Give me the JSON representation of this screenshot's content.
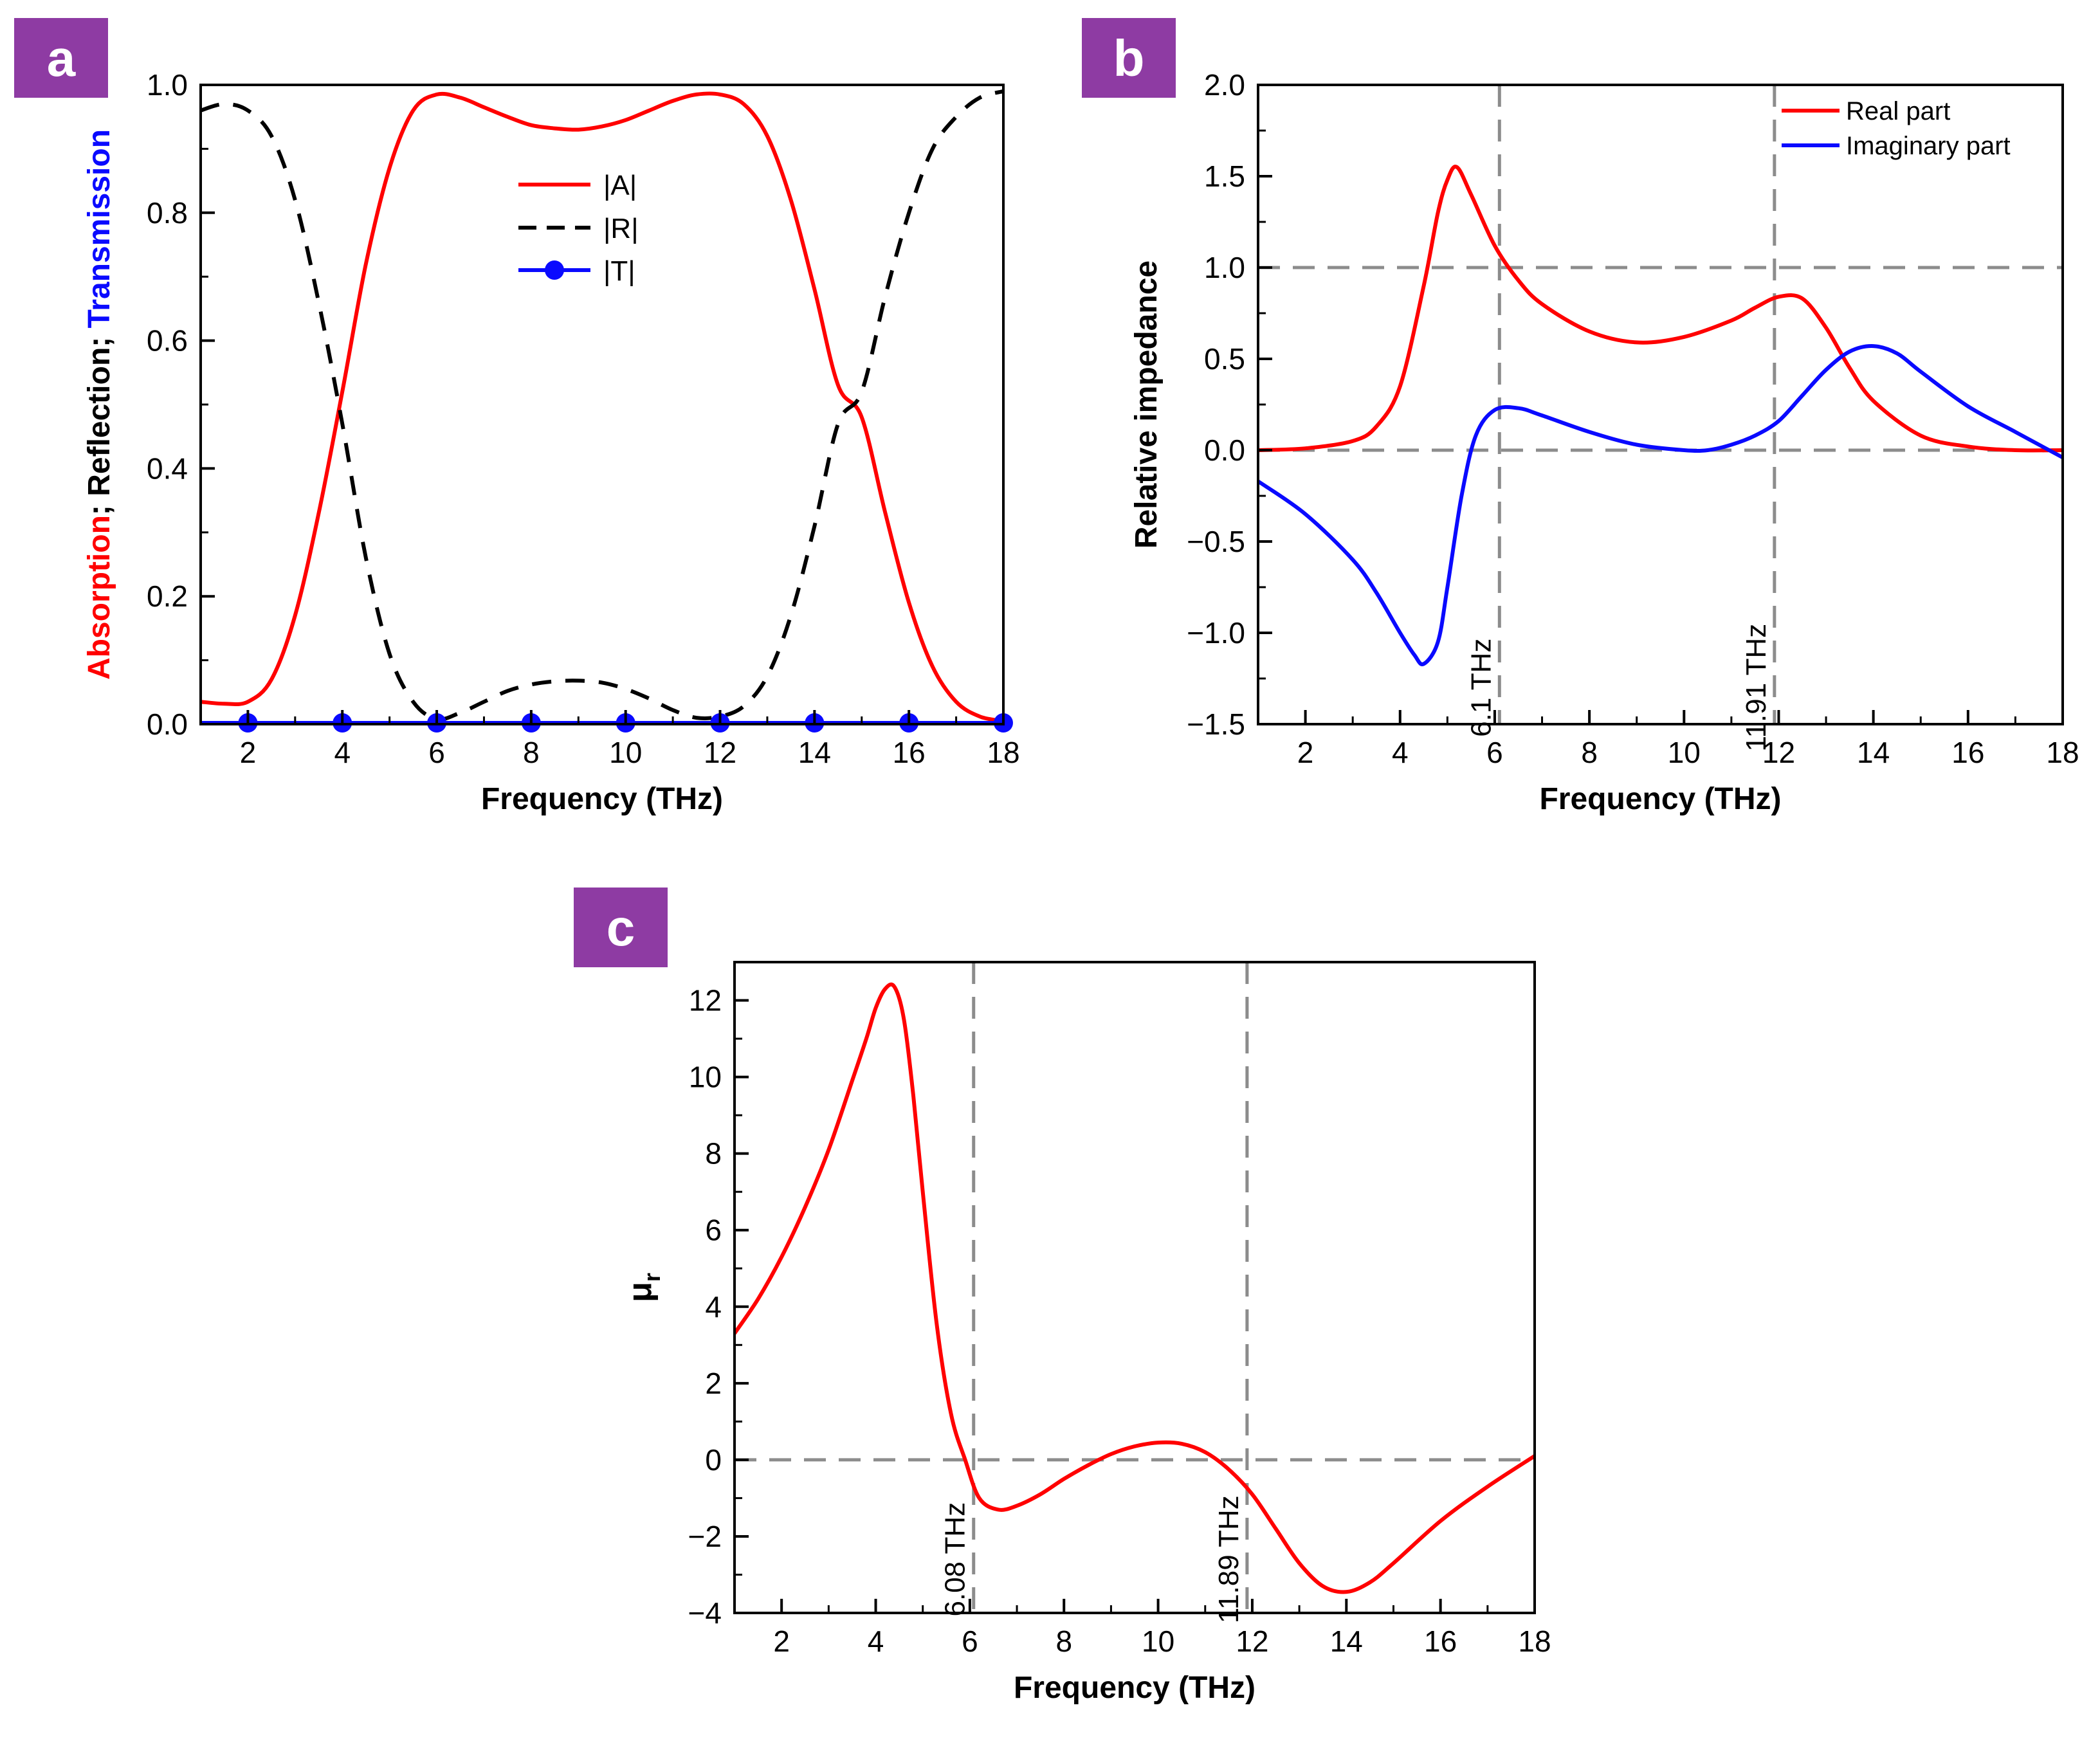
{
  "panel_labels": {
    "a": "a",
    "b": "b",
    "c": "c"
  },
  "colors": {
    "badge": "#8e3ba3",
    "red": "#ff0000",
    "blue": "#0a0aff",
    "black": "#000000",
    "guide": "#8c8c8c"
  },
  "chart_data": [
    {
      "id": "a",
      "type": "line",
      "xlabel": "Frequency (THz)",
      "ylabel_parts": [
        {
          "text": "Absorption",
          "color": "#ff0000"
        },
        {
          "text": "; Reflection; ",
          "color": "#000000"
        },
        {
          "text": "Transmission",
          "color": "#0a0aff"
        }
      ],
      "xlim": [
        1,
        18
      ],
      "ylim": [
        0,
        1.0
      ],
      "x_ticks": [
        "2",
        "4",
        "6",
        "8",
        "10",
        "12",
        "14",
        "16",
        "18"
      ],
      "y_ticks": [
        "0.0",
        "0.2",
        "0.4",
        "0.6",
        "0.8",
        "1.0"
      ],
      "legend_position": "top-center",
      "series": [
        {
          "name": "|A|",
          "color": "#ff0000",
          "style": "solid",
          "markers": false,
          "x": [
            1,
            1.5,
            2,
            2.5,
            3,
            3.5,
            4,
            4.5,
            5,
            5.5,
            6,
            6.5,
            7,
            7.5,
            8,
            8.5,
            9,
            9.5,
            10,
            10.5,
            11,
            11.5,
            12,
            12.5,
            13,
            13.5,
            14,
            14.5,
            15,
            15.5,
            16,
            16.5,
            17,
            17.5,
            18
          ],
          "y": [
            0.035,
            0.032,
            0.035,
            0.07,
            0.17,
            0.33,
            0.52,
            0.72,
            0.87,
            0.96,
            0.985,
            0.98,
            0.965,
            0.95,
            0.937,
            0.932,
            0.93,
            0.935,
            0.945,
            0.96,
            0.975,
            0.985,
            0.985,
            0.97,
            0.92,
            0.82,
            0.68,
            0.53,
            0.48,
            0.33,
            0.19,
            0.09,
            0.035,
            0.012,
            0.005
          ]
        },
        {
          "name": "|R|",
          "color": "#000000",
          "style": "dashed",
          "markers": false,
          "x": [
            1,
            1.5,
            2,
            2.5,
            3,
            3.5,
            4,
            4.5,
            5,
            5.5,
            6,
            6.5,
            7,
            7.5,
            8,
            8.5,
            9,
            9.5,
            10,
            10.5,
            11,
            11.5,
            12,
            12.5,
            13,
            13.5,
            14,
            14.5,
            15,
            15.5,
            16,
            16.5,
            17,
            17.5,
            18
          ],
          "y": [
            0.96,
            0.97,
            0.96,
            0.92,
            0.82,
            0.66,
            0.47,
            0.26,
            0.11,
            0.035,
            0.008,
            0.018,
            0.035,
            0.052,
            0.062,
            0.067,
            0.068,
            0.065,
            0.055,
            0.04,
            0.022,
            0.01,
            0.012,
            0.028,
            0.075,
            0.17,
            0.31,
            0.47,
            0.52,
            0.67,
            0.8,
            0.9,
            0.95,
            0.98,
            0.99
          ]
        },
        {
          "name": "|T|",
          "color": "#0a0aff",
          "style": "solid",
          "markers": true,
          "x": [
            1,
            18
          ],
          "y": [
            0.002,
            0.002
          ],
          "marker_x": [
            2,
            4,
            6,
            8,
            10,
            12,
            14,
            16,
            18
          ],
          "marker_y": [
            0.002,
            0.002,
            0.002,
            0.002,
            0.002,
            0.002,
            0.002,
            0.002,
            0.002
          ]
        }
      ]
    },
    {
      "id": "b",
      "type": "line",
      "xlabel": "Frequency (THz)",
      "ylabel": "Relative impedance",
      "xlim": [
        1,
        18
      ],
      "ylim": [
        -1.5,
        2.0
      ],
      "x_ticks": [
        "2",
        "4",
        "6",
        "8",
        "10",
        "12",
        "14",
        "16",
        "18"
      ],
      "y_ticks": [
        "−1.5",
        "−1.0",
        "−0.5",
        "0.0",
        "0.5",
        "1.0",
        "1.5",
        "2.0"
      ],
      "legend_position": "top-right",
      "guides": {
        "vertical": [
          6.1,
          11.91
        ],
        "horizontal": [
          0,
          1
        ]
      },
      "annotations": [
        {
          "text": "6.1 THz",
          "x": 6.1,
          "y": -1.3
        },
        {
          "text": "11.91 THz",
          "x": 11.91,
          "y": -1.3
        }
      ],
      "series": [
        {
          "name": "Real part",
          "color": "#ff0000",
          "x": [
            1,
            2,
            3,
            3.5,
            4,
            4.5,
            4.8,
            5.0,
            5.2,
            5.5,
            6.0,
            6.5,
            7,
            8,
            9,
            10,
            11,
            11.5,
            12,
            12.5,
            13,
            13.5,
            14,
            15,
            16,
            17,
            18
          ],
          "y": [
            0.0,
            0.01,
            0.05,
            0.13,
            0.35,
            0.9,
            1.3,
            1.48,
            1.55,
            1.4,
            1.12,
            0.93,
            0.8,
            0.65,
            0.59,
            0.62,
            0.71,
            0.78,
            0.84,
            0.83,
            0.67,
            0.45,
            0.27,
            0.08,
            0.02,
            0.0,
            0.0
          ]
        },
        {
          "name": "Imaginary part",
          "color": "#0a0aff",
          "x": [
            1,
            2,
            3,
            3.5,
            4,
            4.3,
            4.5,
            4.8,
            5.0,
            5.3,
            5.6,
            6.0,
            6.5,
            7,
            8,
            9,
            10,
            10.5,
            11,
            11.5,
            12,
            12.5,
            13,
            13.5,
            14,
            14.5,
            15,
            16,
            17,
            18
          ],
          "y": [
            -0.17,
            -0.35,
            -0.6,
            -0.78,
            -1.0,
            -1.12,
            -1.17,
            -1.05,
            -0.75,
            -0.25,
            0.08,
            0.22,
            0.23,
            0.19,
            0.1,
            0.03,
            0.0,
            0.0,
            0.03,
            0.08,
            0.16,
            0.3,
            0.44,
            0.54,
            0.57,
            0.53,
            0.43,
            0.24,
            0.1,
            -0.04
          ]
        }
      ]
    },
    {
      "id": "c",
      "type": "line",
      "xlabel": "Frequency (THz)",
      "ylabel_main": "μ",
      "ylabel_sub": "r",
      "xlim": [
        1,
        18
      ],
      "ylim": [
        -4,
        13
      ],
      "x_ticks": [
        "2",
        "4",
        "6",
        "8",
        "10",
        "12",
        "14",
        "16",
        "18"
      ],
      "y_ticks": [
        "−4",
        "−2",
        "0",
        "2",
        "4",
        "6",
        "8",
        "10",
        "12"
      ],
      "guides": {
        "vertical": [
          6.08,
          11.89
        ],
        "horizontal": [
          0
        ]
      },
      "annotations": [
        {
          "text": "6.08 THz",
          "x": 6.08,
          "y": -2.6
        },
        {
          "text": "11.89 THz",
          "x": 11.89,
          "y": -2.6
        }
      ],
      "series": [
        {
          "name": "",
          "color": "#ff0000",
          "x": [
            1,
            1.5,
            2,
            2.5,
            3,
            3.5,
            3.8,
            4.0,
            4.2,
            4.4,
            4.6,
            4.8,
            5.0,
            5.3,
            5.6,
            5.9,
            6.2,
            6.6,
            7,
            7.5,
            8,
            8.5,
            9,
            9.5,
            10,
            10.5,
            11,
            11.5,
            12,
            12.5,
            13,
            13.5,
            14,
            14.5,
            15,
            16,
            17,
            18
          ],
          "y": [
            3.3,
            4.2,
            5.3,
            6.6,
            8.1,
            9.9,
            11.0,
            11.8,
            12.3,
            12.35,
            11.5,
            9.5,
            7.0,
            3.5,
            1.2,
            0.0,
            -1.0,
            -1.3,
            -1.2,
            -0.9,
            -0.5,
            -0.15,
            0.15,
            0.35,
            0.45,
            0.42,
            0.2,
            -0.25,
            -0.9,
            -1.8,
            -2.7,
            -3.3,
            -3.45,
            -3.2,
            -2.7,
            -1.6,
            -0.7,
            0.1
          ]
        }
      ]
    }
  ]
}
